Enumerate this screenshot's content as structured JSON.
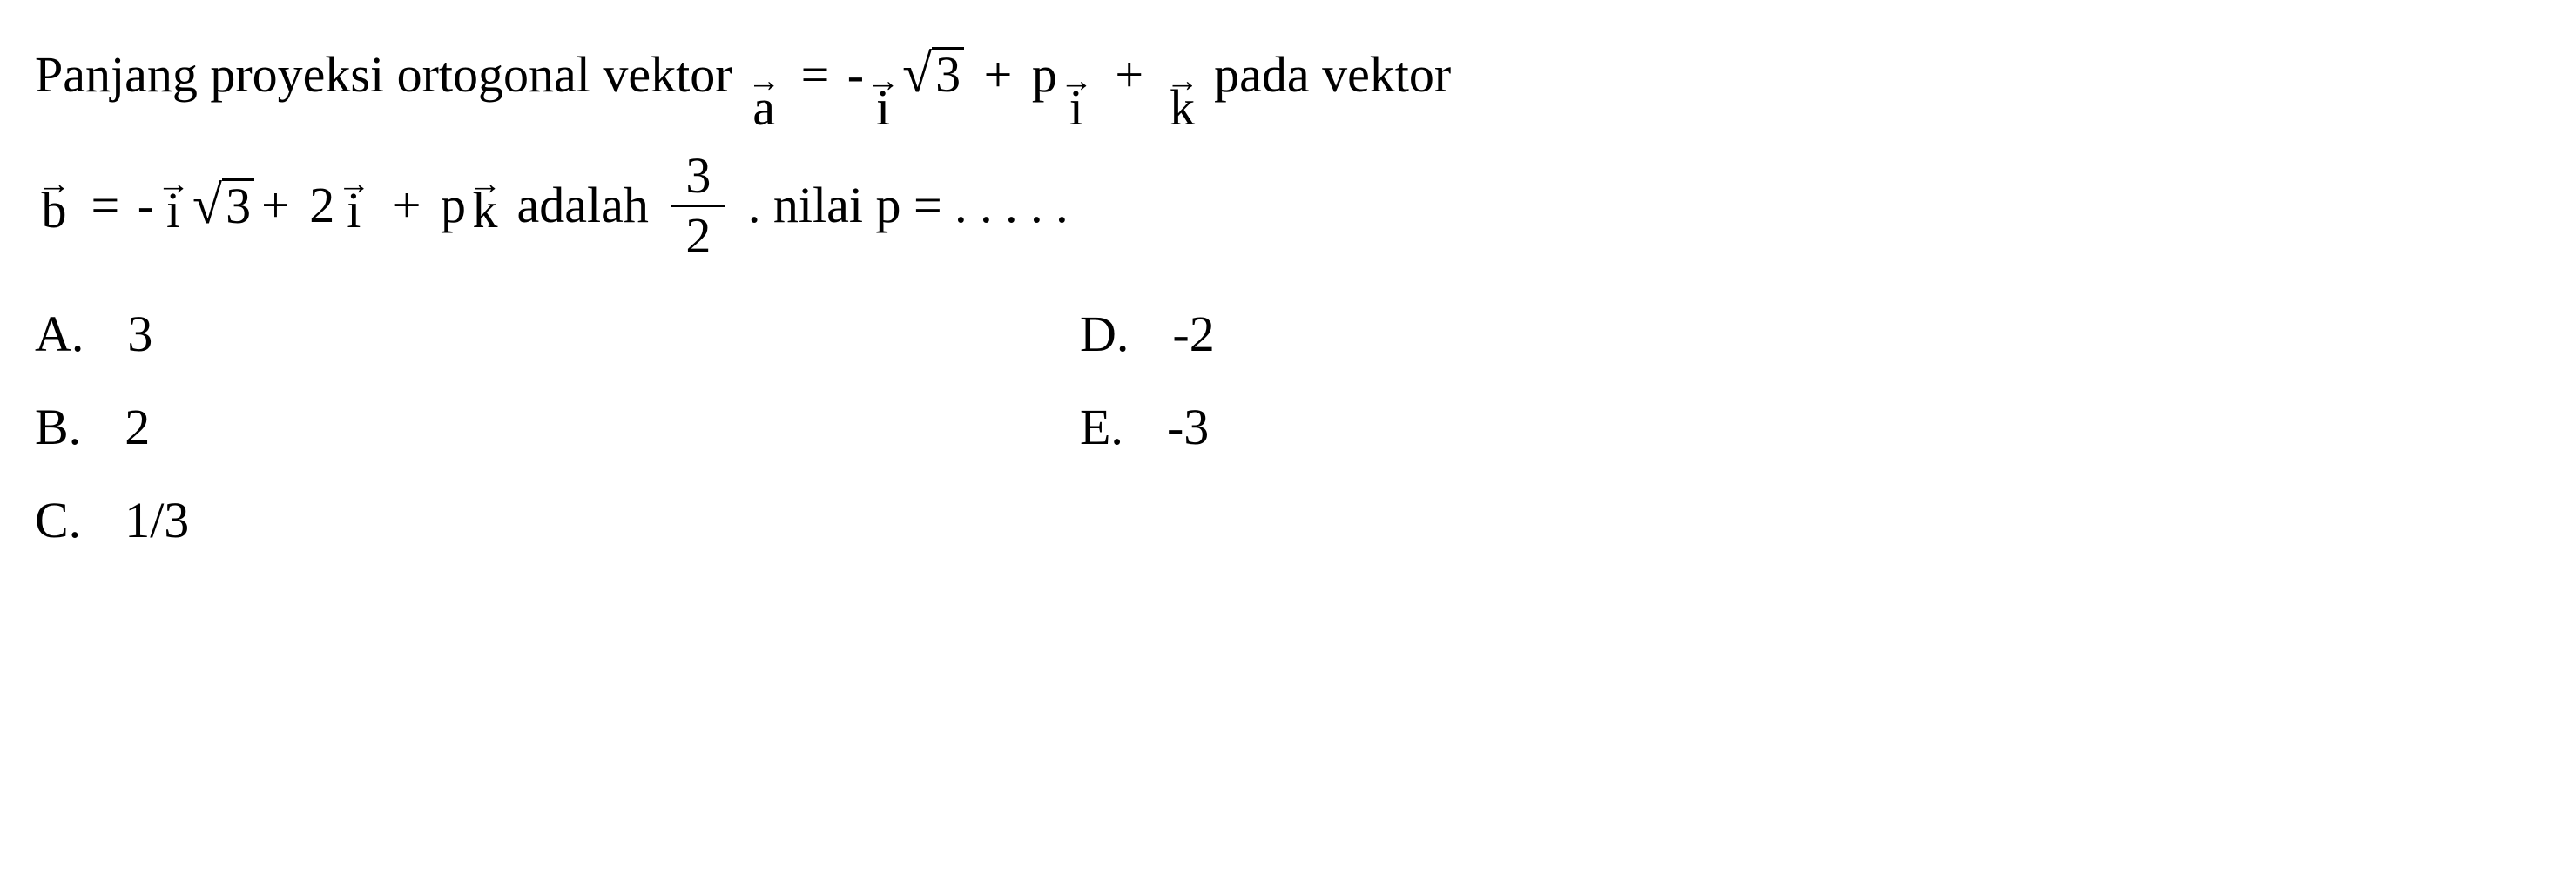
{
  "question": {
    "line1_parts": {
      "t1": "Panjang proyeksi ortogonal vektor ",
      "vec_a": "a",
      "eq1": " = ",
      "neg_sign": "-",
      "vec_i1": "i",
      "sqrt_sign1": "√",
      "sqrt_val1": "3",
      "plus1": " + ",
      "p_coef1": "p",
      "vec_i2": "i",
      "plus2": " + ",
      "vec_k": "k",
      "t2": " pada vektor"
    },
    "line2_parts": {
      "vec_b": "b",
      "eq1": " = ",
      "neg_sign": "-",
      "vec_i1": "i",
      "sqrt_sign": "√",
      "sqrt_val": "3",
      "plus1": "+ ",
      "coef2": "2",
      "vec_i2": "i",
      "plus2": " + ",
      "p_coef": "p",
      "vec_k": "k",
      "t_adalah": " adalah ",
      "frac_num": "3",
      "frac_den": "2",
      "t_nilai": " . nilai p = . . . . ."
    },
    "arrow_glyph": "→"
  },
  "options": {
    "A": {
      "letter": "A.",
      "value": "3"
    },
    "B": {
      "letter": "B.",
      "value": "2"
    },
    "C": {
      "letter": "C.",
      "value": "1/3"
    },
    "D": {
      "letter": "D.",
      "value": "-2"
    },
    "E": {
      "letter": "E.",
      "value": "-3"
    }
  },
  "style": {
    "font_size_main": 58,
    "font_size_arrow": 38,
    "text_color": "#000000",
    "background_color": "#ffffff",
    "font_family": "Times New Roman"
  }
}
